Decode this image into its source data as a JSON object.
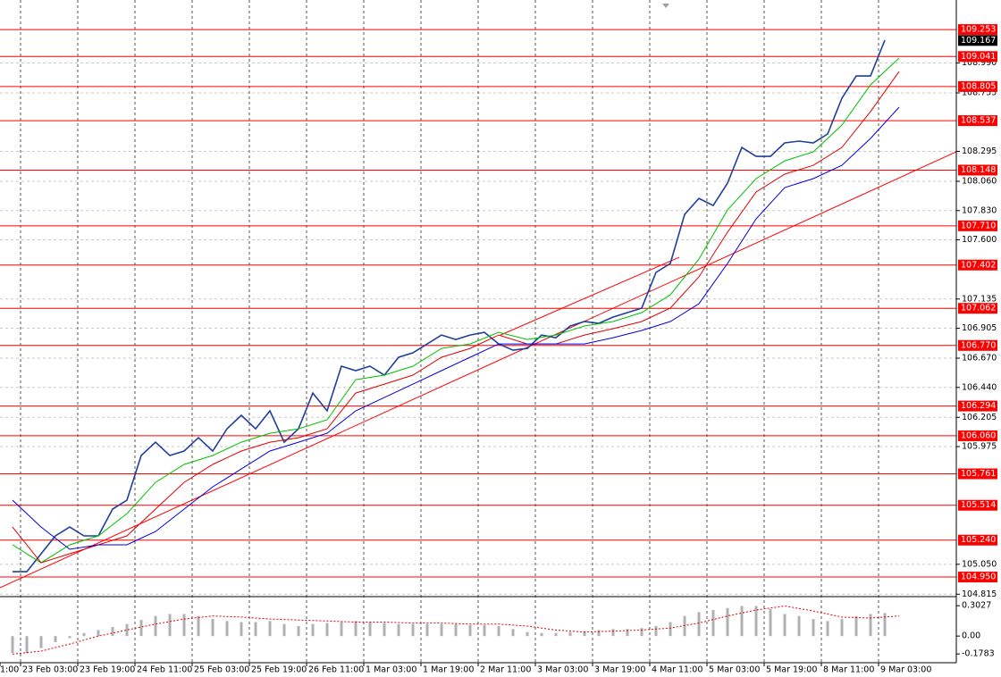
{
  "chart_data": [
    {
      "type": "line",
      "xlim": [
        -3.5,
        264
      ],
      "ylim": [
        104.803,
        109.45
      ],
      "grid": true,
      "xticks": [
        {
          "value": -13.75,
          "label": "1:00"
        },
        {
          "value": 2.25,
          "label": "23 Feb 03:00"
        },
        {
          "value": 18.25,
          "label": "23 Feb 19:00"
        },
        {
          "value": 34.25,
          "label": "24 Feb 11:00"
        },
        {
          "value": 50.25,
          "label": "25 Feb 03:00"
        },
        {
          "value": 66.25,
          "label": "25 Feb 19:00"
        },
        {
          "value": 82.25,
          "label": "26 Feb 11:00"
        },
        {
          "value": 98.25,
          "label": "1 Mar 03:00"
        },
        {
          "value": 114.25,
          "label": "1 Mar 19:00"
        },
        {
          "value": 130.25,
          "label": "2 Mar 11:00"
        },
        {
          "value": 146.25,
          "label": "3 Mar 03:00"
        },
        {
          "value": 162.25,
          "label": "3 Mar 19:00"
        },
        {
          "value": 178.25,
          "label": "4 Mar 11:00"
        },
        {
          "value": 194.25,
          "label": "5 Mar 03:00"
        },
        {
          "value": 210.25,
          "label": "5 Mar 19:00"
        },
        {
          "value": 226.25,
          "label": "8 Mar 11:00"
        },
        {
          "value": 242.25,
          "label": "9 Mar 03:00"
        }
      ],
      "yticks": [
        {
          "value": 108.99,
          "label": "108.990"
        },
        108.755,
        108.295,
        {
          "value": 108.06,
          "label": "108.060"
        },
        {
          "value": 107.83,
          "label": "107.830"
        },
        {
          "value": 107.6,
          "label": "107.600"
        },
        107.135,
        106.905,
        {
          "value": 106.67,
          "label": "106.670"
        },
        {
          "value": 106.44,
          "label": "106.440"
        },
        106.205,
        105.975,
        {
          "value": 105.05,
          "label": "105.050"
        },
        104.815
      ],
      "series": [
        {
          "color": "#1f3f99",
          "x": [
            0,
            4,
            8,
            12,
            16,
            20,
            24,
            28,
            32,
            36,
            40,
            44,
            48,
            52,
            56,
            60,
            64,
            68,
            72,
            76,
            80,
            84,
            88,
            92,
            96,
            100,
            104,
            108,
            112,
            116,
            120,
            124,
            128,
            132,
            136,
            140,
            144,
            148,
            152,
            156,
            160,
            164,
            168,
            172,
            176,
            180,
            184,
            188,
            192,
            196,
            200,
            204,
            208,
            212,
            216,
            220,
            224,
            228,
            232,
            236,
            240,
            244
          ],
          "values": [
            104.992,
            104.992,
            105.133,
            105.273,
            105.343,
            105.273,
            105.273,
            105.484,
            105.554,
            105.905,
            106.01,
            105.905,
            105.94,
            106.045,
            105.94,
            106.115,
            106.221,
            106.115,
            106.256,
            106.01,
            106.115,
            106.396,
            106.256,
            106.607,
            106.572,
            106.607,
            106.536,
            106.677,
            106.712,
            106.782,
            106.852,
            106.817,
            106.852,
            106.873,
            106.782,
            106.733,
            106.747,
            106.852,
            106.831,
            106.923,
            106.958,
            106.944,
            106.993,
            107.028,
            107.063,
            107.344,
            107.414,
            107.8,
            107.926,
            107.87,
            108.046,
            108.326,
            108.256,
            108.256,
            108.362,
            108.376,
            108.362,
            108.432,
            108.713,
            108.888,
            108.888,
            109.169
          ]
        },
        {
          "color": "#00c000",
          "x": [
            0,
            8,
            16,
            24,
            32,
            40,
            48,
            56,
            64,
            72,
            80,
            88,
            96,
            104,
            112,
            120,
            128,
            136,
            144,
            152,
            160,
            168,
            176,
            184,
            192,
            200,
            208,
            216,
            224,
            232,
            240,
            248
          ],
          "values": [
            105.203,
            105.062,
            105.203,
            105.273,
            105.448,
            105.694,
            105.835,
            105.905,
            106.01,
            106.08,
            106.115,
            106.186,
            106.501,
            106.537,
            106.607,
            106.747,
            106.782,
            106.874,
            106.817,
            106.852,
            106.923,
            106.958,
            107.028,
            107.168,
            107.449,
            107.835,
            108.081,
            108.221,
            108.292,
            108.502,
            108.818,
            109.029
          ]
        },
        {
          "color": "#e00000",
          "x": [
            0,
            8,
            16,
            24,
            32,
            40,
            48,
            56,
            64,
            72,
            80,
            88,
            96,
            104,
            112,
            120,
            128,
            136,
            144,
            152,
            160,
            168,
            176,
            184,
            192,
            200,
            208,
            216,
            224,
            232,
            240,
            248
          ],
          "values": [
            105.343,
            105.062,
            105.133,
            105.203,
            105.273,
            105.484,
            105.694,
            105.835,
            105.94,
            106.01,
            106.045,
            106.115,
            106.396,
            106.466,
            106.537,
            106.677,
            106.747,
            106.852,
            106.782,
            106.782,
            106.852,
            106.902,
            106.958,
            107.063,
            107.309,
            107.66,
            107.976,
            108.116,
            108.186,
            108.327,
            108.608,
            108.923
          ]
        },
        {
          "color": "#0000e0",
          "x": [
            0,
            8,
            16,
            24,
            32,
            40,
            48,
            56,
            64,
            72,
            80,
            88,
            96,
            104,
            112,
            120,
            128,
            136,
            144,
            152,
            160,
            168,
            176,
            184,
            192,
            200,
            208,
            216,
            224,
            232,
            240,
            248
          ],
          "values": [
            105.554,
            105.343,
            105.168,
            105.203,
            105.203,
            105.308,
            105.484,
            105.659,
            105.799,
            105.94,
            106.01,
            106.08,
            106.256,
            106.361,
            106.466,
            106.572,
            106.677,
            106.782,
            106.782,
            106.782,
            106.782,
            106.831,
            106.888,
            106.958,
            107.098,
            107.414,
            107.765,
            108.011,
            108.081,
            108.186,
            108.397,
            108.643
          ]
        }
      ],
      "levels": {
        "color": "#ff0000",
        "values": [
          109.253,
          109.041,
          108.805,
          108.537,
          108.148,
          107.71,
          107.402,
          107.062,
          106.77,
          106.294,
          106.06,
          105.761,
          105.514,
          105.24,
          104.95
        ],
        "value_labels": [
          "109.253",
          "109.041",
          "108.805",
          "108.537",
          "108.148",
          "107.710",
          "107.402",
          "107.062",
          "106.770",
          "106.294",
          "106.060",
          "105.761",
          "105.514",
          "105.240",
          "104.950"
        ]
      },
      "last_price": 109.167,
      "trendlines": [
        {
          "color": "#ff0000",
          "x": [
            -3.5,
            264
          ],
          "values": [
            104.866,
            108.292
          ]
        },
        {
          "color": "#ff0000",
          "x": [
            136.5,
            186.5
          ],
          "values": [
            106.852,
            107.463
          ]
        }
      ]
    },
    {
      "type": "bar",
      "xlim": [
        -3.5,
        264
      ],
      "ylim": [
        -0.266,
        0.376
      ],
      "yticks": [
        0.3027,
        {
          "value": 0,
          "label": "0.00"
        },
        -0.1783
      ],
      "series": [
        {
          "type": "bar",
          "color": "#b0b0b0",
          "x": [
            0,
            4,
            8,
            12,
            16,
            20,
            24,
            28,
            32,
            36,
            40,
            44,
            48,
            52,
            56,
            60,
            64,
            68,
            72,
            76,
            80,
            84,
            88,
            92,
            96,
            100,
            104,
            108,
            112,
            116,
            120,
            124,
            128,
            132,
            136,
            140,
            144,
            148,
            152,
            156,
            160,
            164,
            168,
            172,
            176,
            180,
            184,
            188,
            192,
            196,
            200,
            204,
            208,
            212,
            216,
            220,
            224,
            228,
            232,
            236,
            240,
            244
          ],
          "values": [
            -0.17,
            -0.17,
            -0.12,
            -0.06,
            -0.02,
            0.03,
            0.06,
            0.09,
            0.12,
            0.16,
            0.2,
            0.22,
            0.22,
            0.2,
            0.17,
            0.15,
            0.14,
            0.14,
            0.15,
            0.12,
            0.1,
            0.12,
            0.13,
            0.14,
            0.15,
            0.14,
            0.13,
            0.12,
            0.12,
            0.12,
            0.12,
            0.12,
            0.11,
            0.11,
            0.1,
            0.07,
            0.04,
            0.03,
            0.03,
            0.04,
            0.05,
            0.06,
            0.07,
            0.07,
            0.08,
            0.1,
            0.14,
            0.2,
            0.24,
            0.26,
            0.28,
            0.3,
            0.3,
            0.27,
            0.22,
            0.2,
            0.17,
            0.15,
            0.17,
            0.2,
            0.22,
            0.23
          ]
        },
        {
          "type": "line",
          "color": "#e00000",
          "x": [
            0,
            8,
            16,
            24,
            32,
            40,
            48,
            56,
            64,
            72,
            80,
            88,
            96,
            104,
            112,
            120,
            128,
            136,
            144,
            152,
            160,
            168,
            176,
            184,
            192,
            200,
            208,
            216,
            224,
            232,
            240,
            248
          ],
          "values": [
            -0.18,
            -0.15,
            -0.08,
            0.0,
            0.06,
            0.12,
            0.17,
            0.2,
            0.19,
            0.17,
            0.16,
            0.15,
            0.14,
            0.14,
            0.13,
            0.13,
            0.12,
            0.12,
            0.1,
            0.06,
            0.04,
            0.05,
            0.06,
            0.08,
            0.13,
            0.2,
            0.26,
            0.3,
            0.25,
            0.19,
            0.18,
            0.2
          ]
        }
      ]
    }
  ]
}
